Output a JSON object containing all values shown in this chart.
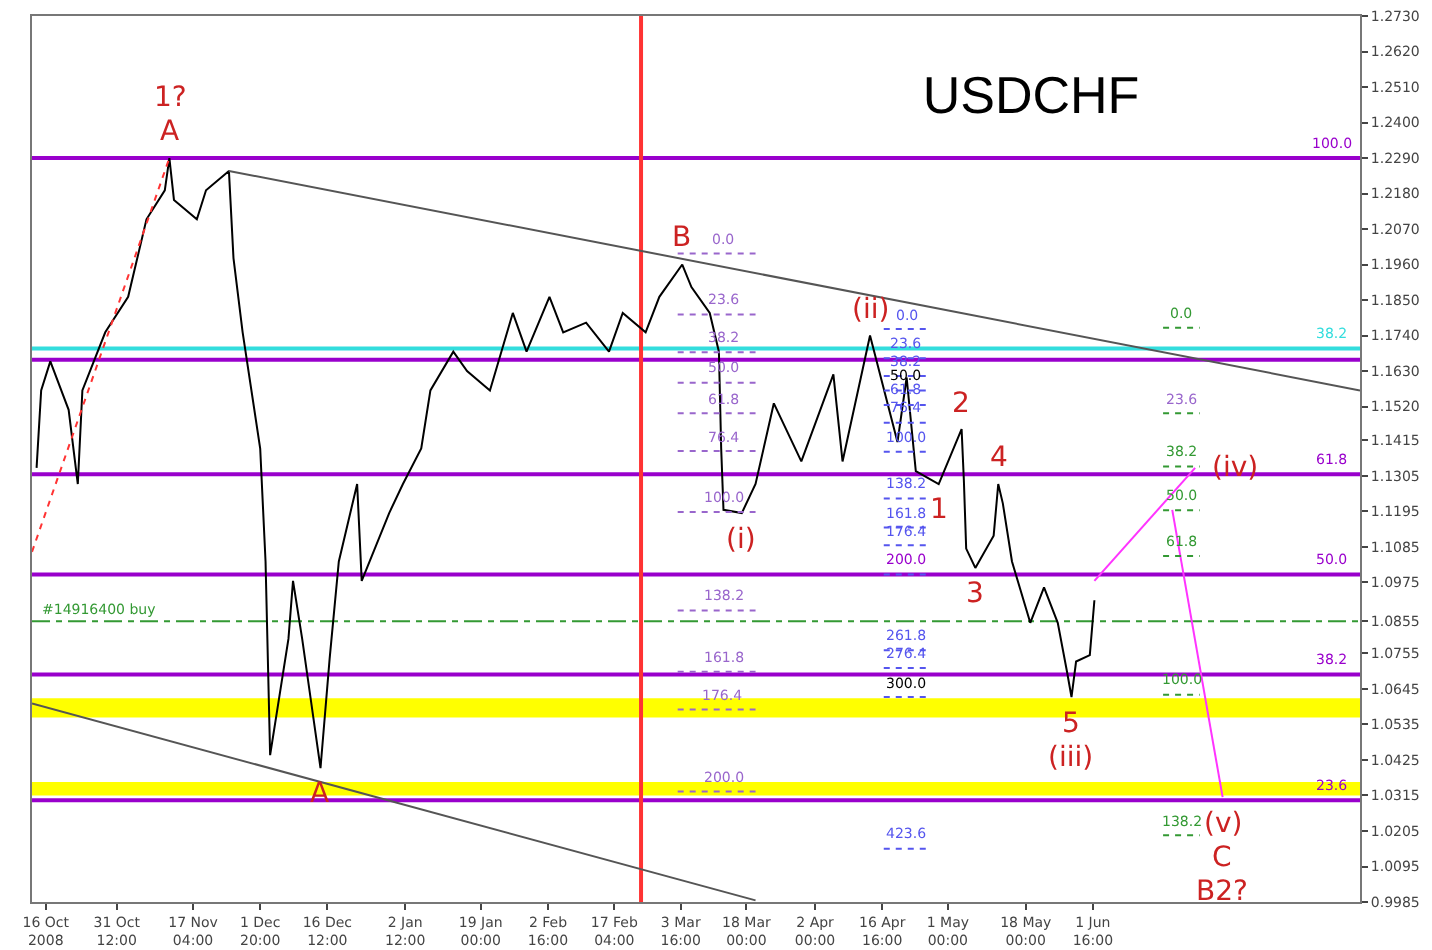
{
  "chart_data": {
    "type": "line",
    "title": "USDCHF",
    "xlim": [
      "2008-10-13",
      "2009-07-30"
    ],
    "ylim": [
      0.9985,
      1.273
    ],
    "xticks": [
      {
        "value": "2008-10-16",
        "label": "16 Oct 2008"
      },
      {
        "value": "2008-10-31T12:00",
        "label": "31 Oct 12:00"
      },
      {
        "value": "2008-11-17T04:00",
        "label": "17 Nov 04:00"
      },
      {
        "value": "2008-12-01T20:00",
        "label": "1 Dec 20:00"
      },
      {
        "value": "2008-12-16T12:00",
        "label": "16 Dec 12:00"
      },
      {
        "value": "2009-01-02T12:00",
        "label": "2 Jan 12:00"
      },
      {
        "value": "2009-01-19T00:00",
        "label": "19 Jan 00:00"
      },
      {
        "value": "2009-02-02T16:00",
        "label": "2 Feb 16:00"
      },
      {
        "value": "2009-02-17T04:00",
        "label": "17 Feb 04:00"
      },
      {
        "value": "2009-03-03T16:00",
        "label": "3 Mar 16:00"
      },
      {
        "value": "2009-03-18T00:00",
        "label": "18 Mar 00:00"
      },
      {
        "value": "2009-04-02T00:00",
        "label": "2 Apr 00:00"
      },
      {
        "value": "2009-04-16T16:00",
        "label": "16 Apr 16:00"
      },
      {
        "value": "2009-05-01T00:00",
        "label": "1 May 00:00"
      },
      {
        "value": "2009-05-18T00:00",
        "label": "18 May 00:00"
      },
      {
        "value": "2009-06-01T16:00",
        "label": "1 Jun 16:00"
      }
    ],
    "yticks": [
      {
        "value": 1.273,
        "label": "1.2730"
      },
      {
        "value": 1.262,
        "label": "1.2620"
      },
      {
        "value": 1.251,
        "label": "1.2510"
      },
      {
        "value": 1.24,
        "label": "1.2400"
      },
      {
        "value": 1.229,
        "label": "1.2290"
      },
      {
        "value": 1.218,
        "label": "1.2180"
      },
      {
        "value": 1.207,
        "label": "1.2070"
      },
      {
        "value": 1.196,
        "label": "1.1960"
      },
      {
        "value": 1.185,
        "label": "1.1850"
      },
      {
        "value": 1.174,
        "label": "1.1740"
      },
      {
        "value": 1.163,
        "label": "1.1630"
      },
      {
        "value": 1.152,
        "label": "1.1520"
      },
      1.1415,
      1.1305,
      1.1195,
      1.1085,
      1.0975,
      1.0855,
      1.0755,
      1.0645,
      1.0535,
      1.0425,
      1.0315,
      1.0205,
      1.0095,
      0.9985
    ],
    "grid": false,
    "series": [
      {
        "color": "#000000",
        "x": [
          "2008-10-14",
          "2008-10-15",
          "2008-10-17",
          "2008-10-21",
          "2008-10-23",
          "2008-10-24",
          "2008-10-29",
          "2008-11-03",
          "2008-11-05",
          "2008-11-07",
          "2008-11-11",
          "2008-11-12",
          "2008-11-13",
          "2008-11-18",
          "2008-11-20",
          "2008-11-25",
          "2008-11-26",
          "2008-11-28",
          "2008-12-01T20:00",
          "2008-12-03",
          "2008-12-04",
          "2008-12-08",
          "2008-12-09",
          "2008-12-11",
          "2008-12-15",
          "2008-12-17",
          "2008-12-19",
          "2008-12-23",
          "2008-12-24",
          "2008-12-30",
          "2009-01-02",
          "2009-01-06",
          "2009-01-08",
          "2009-01-13",
          "2009-01-16",
          "2009-01-21",
          "2009-01-26",
          "2009-01-29",
          "2009-02-03",
          "2009-02-06",
          "2009-02-11",
          "2009-02-16",
          "2009-02-19",
          "2009-02-24",
          "2009-02-27",
          "2009-03-04",
          "2009-03-06",
          "2009-03-10",
          "2009-03-12",
          "2009-03-12T12:00",
          "2009-03-13",
          "2009-03-17",
          "2009-03-20",
          "2009-03-24",
          "2009-03-30",
          "2009-04-06",
          "2009-04-08",
          "2009-04-14",
          "2009-04-20",
          "2009-04-22",
          "2009-04-24",
          "2009-04-29",
          "2009-05-04",
          "2009-05-04T12:00",
          "2009-05-05",
          "2009-05-07",
          "2009-05-11",
          "2009-05-12",
          "2009-05-13",
          "2009-05-15",
          "2009-05-19",
          "2009-05-22",
          "2009-05-25",
          "2009-05-27",
          "2009-05-28",
          "2009-05-29",
          "2009-06-01",
          "2009-06-02"
        ],
        "values": [
          1.133,
          1.157,
          1.166,
          1.151,
          1.128,
          1.157,
          1.175,
          1.186,
          1.198,
          1.21,
          1.219,
          1.229,
          1.216,
          1.21,
          1.219,
          1.225,
          1.198,
          1.175,
          1.139,
          1.104,
          1.044,
          1.08,
          1.098,
          1.08,
          1.04,
          1.074,
          1.104,
          1.128,
          1.098,
          1.119,
          1.128,
          1.139,
          1.157,
          1.169,
          1.163,
          1.157,
          1.181,
          1.169,
          1.186,
          1.175,
          1.178,
          1.169,
          1.181,
          1.175,
          1.186,
          1.196,
          1.189,
          1.181,
          1.169,
          1.139,
          1.12,
          1.119,
          1.128,
          1.153,
          1.135,
          1.162,
          1.135,
          1.174,
          1.141,
          1.161,
          1.132,
          1.128,
          1.145,
          1.129,
          1.108,
          1.102,
          1.112,
          1.128,
          1.122,
          1.104,
          1.085,
          1.096,
          1.085,
          1.07,
          1.062,
          1.073,
          1.075,
          1.092
        ]
      },
      {
        "color": "#555555",
        "x": [
          "2008-11-25",
          "2009-07-30"
        ],
        "values": [
          1.225,
          1.157
        ]
      },
      {
        "color": "#555555",
        "x": [
          "2008-10-13",
          "2009-03-20"
        ],
        "values": [
          1.06,
          0.999
        ]
      },
      {
        "color": "#ff3333",
        "line_style": "dotted",
        "x": [
          "2008-10-13",
          "2008-11-12"
        ],
        "values": [
          1.107,
          1.229
        ]
      },
      {
        "color": "#ff33ff",
        "x": [
          "2009-06-02",
          "2009-06-24"
        ],
        "values": [
          1.098,
          1.133
        ]
      },
      {
        "color": "#ff33ff",
        "x": [
          "2009-06-19",
          "2009-06-30"
        ],
        "values": [
          1.12,
          1.031
        ]
      },
      {
        "color": "#9966cc",
        "line_style": "dotted",
        "x": [
          "2009-03-03",
          "2009-03-20"
        ],
        "values": [
          1.1994,
          1.1994
        ]
      },
      {
        "color": "#9966cc",
        "line_style": "dotted",
        "x": [
          "2009-03-03",
          "2009-03-20"
        ],
        "values": [
          1.1805,
          1.1805
        ]
      },
      {
        "color": "#9966cc",
        "line_style": "dotted",
        "x": [
          "2009-03-03",
          "2009-03-20"
        ],
        "values": [
          1.1688,
          1.1688
        ]
      },
      {
        "color": "#9966cc",
        "line_style": "dotted",
        "x": [
          "2009-03-03",
          "2009-03-20"
        ],
        "values": [
          1.1594,
          1.1594
        ]
      },
      {
        "color": "#9966cc",
        "line_style": "dotted",
        "x": [
          "2009-03-03",
          "2009-03-20"
        ],
        "values": [
          1.1499,
          1.1499
        ]
      },
      {
        "color": "#9966cc",
        "line_style": "dotted",
        "x": [
          "2009-03-03",
          "2009-03-20"
        ],
        "values": [
          1.1382,
          1.1382
        ]
      },
      {
        "color": "#9966cc",
        "line_style": "dotted",
        "x": [
          "2009-03-03",
          "2009-03-20"
        ],
        "values": [
          1.1193,
          1.1193
        ]
      },
      {
        "color": "#9966cc",
        "line_style": "dotted",
        "x": [
          "2009-03-03",
          "2009-03-20"
        ],
        "values": [
          1.0888,
          1.0888
        ]
      },
      {
        "color": "#9966cc",
        "line_style": "dotted",
        "x": [
          "2009-03-03",
          "2009-03-20"
        ],
        "values": [
          1.0698,
          1.0698
        ]
      },
      {
        "color": "#9966cc",
        "line_style": "dotted",
        "x": [
          "2009-03-03",
          "2009-03-20"
        ],
        "values": [
          1.0581,
          1.0581
        ]
      },
      {
        "color": "#9966cc",
        "line_style": "dotted",
        "x": [
          "2009-03-03",
          "2009-03-20"
        ],
        "values": [
          1.0327,
          1.0327
        ]
      },
      {
        "color": "#5555ee",
        "line_style": "dotted",
        "x": [
          "2009-04-17",
          "2009-04-27"
        ],
        "values": [
          1.176,
          1.176
        ]
      },
      {
        "color": "#5555ee",
        "line_style": "dotted",
        "x": [
          "2009-04-17",
          "2009-04-27"
        ],
        "values": [
          1.167,
          1.167
        ]
      },
      {
        "color": "#5555ee",
        "line_style": "dotted",
        "x": [
          "2009-04-17",
          "2009-04-27"
        ],
        "values": [
          1.1615,
          1.1615
        ]
      },
      {
        "color": "#5555ee",
        "line_style": "dotted",
        "x": [
          "2009-04-17",
          "2009-04-27"
        ],
        "values": [
          1.157,
          1.157
        ]
      },
      {
        "color": "#5555ee",
        "line_style": "dotted",
        "x": [
          "2009-04-17",
          "2009-04-27"
        ],
        "values": [
          1.1525,
          1.1525
        ]
      },
      {
        "color": "#5555ee",
        "line_style": "dotted",
        "x": [
          "2009-04-17",
          "2009-04-27"
        ],
        "values": [
          1.147,
          1.147
        ]
      },
      {
        "color": "#5555ee",
        "line_style": "dotted",
        "x": [
          "2009-04-17",
          "2009-04-27"
        ],
        "values": [
          1.138,
          1.138
        ]
      },
      {
        "color": "#5555ee",
        "line_style": "dotted",
        "x": [
          "2009-04-17",
          "2009-04-27"
        ],
        "values": [
          1.1235,
          1.1235
        ]
      },
      {
        "color": "#5555ee",
        "line_style": "dotted",
        "x": [
          "2009-04-17",
          "2009-04-27"
        ],
        "values": [
          1.1145,
          1.1145
        ]
      },
      {
        "color": "#5555ee",
        "line_style": "dotted",
        "x": [
          "2009-04-17",
          "2009-04-27"
        ],
        "values": [
          1.109,
          1.109
        ]
      },
      {
        "color": "#5555ee",
        "line_style": "dotted",
        "x": [
          "2009-04-17",
          "2009-04-27"
        ],
        "values": [
          1.1,
          1.1
        ]
      },
      {
        "color": "#5555ee",
        "line_style": "dotted",
        "x": [
          "2009-04-17",
          "2009-04-27"
        ],
        "values": [
          1.0765,
          1.0765
        ]
      },
      {
        "color": "#5555ee",
        "line_style": "dotted",
        "x": [
          "2009-04-17",
          "2009-04-27"
        ],
        "values": [
          1.071,
          1.071
        ]
      },
      {
        "color": "#5555ee",
        "line_style": "dotted",
        "x": [
          "2009-04-17",
          "2009-04-27"
        ],
        "values": [
          1.062,
          1.062
        ]
      },
      {
        "color": "#5555ee",
        "line_style": "dotted",
        "x": [
          "2009-04-17",
          "2009-04-27"
        ],
        "values": [
          1.015,
          1.015
        ]
      },
      {
        "color": "#339933",
        "line_style": "dotted",
        "x": [
          "2009-06-17",
          "2009-06-25"
        ],
        "values": [
          1.1764,
          1.1764
        ]
      },
      {
        "color": "#339933",
        "line_style": "dotted",
        "x": [
          "2009-06-17",
          "2009-06-25"
        ],
        "values": [
          1.1499,
          1.1499
        ]
      },
      {
        "color": "#339933",
        "line_style": "dotted",
        "x": [
          "2009-06-17",
          "2009-06-25"
        ],
        "values": [
          1.1334,
          1.1334
        ]
      },
      {
        "color": "#339933",
        "line_style": "dotted",
        "x": [
          "2009-06-17",
          "2009-06-25"
        ],
        "values": [
          1.1199,
          1.1199
        ]
      },
      {
        "color": "#339933",
        "line_style": "dotted",
        "x": [
          "2009-06-17",
          "2009-06-25"
        ],
        "values": [
          1.1057,
          1.1057
        ]
      },
      {
        "color": "#339933",
        "line_style": "dotted",
        "x": [
          "2009-06-17",
          "2009-06-25"
        ],
        "values": [
          1.0627,
          1.0627
        ]
      },
      {
        "color": "#339933",
        "line_style": "dotted",
        "x": [
          "2009-06-17",
          "2009-06-25"
        ],
        "values": [
          1.0192,
          1.0192
        ]
      }
    ],
    "ref_lines": [
      {
        "axis": "y",
        "value": 1.229,
        "label": null,
        "color": "#9900cc"
      },
      {
        "axis": "y",
        "value": 1.17,
        "label": null,
        "color": "#33dddd"
      },
      {
        "axis": "y",
        "value": 1.1665,
        "label": null,
        "color": "#9900cc"
      },
      {
        "axis": "y",
        "value": 1.131,
        "label": null,
        "color": "#9900cc"
      },
      {
        "axis": "y",
        "value": 1.1,
        "label": null,
        "color": "#9900cc"
      },
      {
        "axis": "y",
        "value": 1.0855,
        "label": "#14916400 buy",
        "color": "#339933",
        "line_style": "dashdot"
      },
      {
        "axis": "y",
        "value": 1.069,
        "label": null,
        "color": "#9900cc"
      },
      {
        "axis": "y",
        "value": 1.03,
        "label": null,
        "color": "#9900cc"
      },
      {
        "axis": "x",
        "value": "2009-02-23",
        "label": null,
        "color": "#ff3333"
      }
    ],
    "bands": [
      {
        "axis": "y",
        "from": 1.0557,
        "to": 1.0616,
        "label": null,
        "color": "#ffff00"
      },
      {
        "axis": "y",
        "from": 1.0315,
        "to": 1.0357,
        "label": null,
        "color": "#ffff00"
      }
    ],
    "annotations": [
      {
        "text": "1?",
        "x": "2008-11-12",
        "y": 1.229
      },
      {
        "text": "A",
        "x": "2008-11-12",
        "y": 1.229
      },
      {
        "text": "A",
        "x": "2008-12-15",
        "y": 1.04
      },
      {
        "text": "B",
        "x": "2009-03-04",
        "y": 1.196
      },
      {
        "text": "(i)",
        "x": "2009-03-17",
        "y": 1.119
      },
      {
        "text": "(ii)",
        "x": "2009-04-14",
        "y": 1.174
      },
      {
        "text": "1",
        "x": "2009-04-29",
        "y": 1.128
      },
      {
        "text": "2",
        "x": "2009-05-04",
        "y": 1.145
      },
      {
        "text": "3",
        "x": "2009-05-07",
        "y": 1.102
      },
      {
        "text": "4",
        "x": "2009-05-12",
        "y": 1.128
      },
      {
        "text": "5",
        "x": "2009-05-28",
        "y": 1.062
      },
      {
        "text": "(iii)",
        "x": "2009-05-28",
        "y": 1.062
      },
      {
        "text": "(iv)",
        "x": "2009-06-24",
        "y": 1.133
      },
      {
        "text": "(v)",
        "x": "2009-06-30",
        "y": 1.031
      },
      {
        "text": "C",
        "x": "2009-06-30",
        "y": 1.031
      },
      {
        "text": "B2?",
        "x": "2009-06-30",
        "y": 1.031
      },
      {
        "text": "100.0",
        "x": "2009-07-24",
        "y": 1.229
      },
      {
        "text": "38.2",
        "x": "2009-07-24",
        "y": 1.17
      },
      {
        "text": "61.8",
        "x": "2009-07-24",
        "y": 1.131
      },
      {
        "text": "50.0",
        "x": "2009-07-24",
        "y": 1.1
      },
      {
        "text": "38.2",
        "x": "2009-07-24",
        "y": 1.069
      },
      {
        "text": "23.6",
        "x": "2009-07-24",
        "y": 1.03
      },
      {
        "text": "0.0",
        "x": "2009-03-13",
        "y": 1.1994
      },
      {
        "text": "23.6",
        "x": "2009-03-13",
        "y": 1.1805
      },
      {
        "text": "38.2",
        "x": "2009-03-13",
        "y": 1.1688
      },
      {
        "text": "50.0",
        "x": "2009-03-13",
        "y": 1.1594
      },
      {
        "text": "61.8",
        "x": "2009-03-13",
        "y": 1.1499
      },
      {
        "text": "76.4",
        "x": "2009-03-13",
        "y": 1.1382
      },
      {
        "text": "100.0",
        "x": "2009-03-13",
        "y": 1.1193
      },
      {
        "text": "138.2",
        "x": "2009-03-13",
        "y": 1.0888
      },
      {
        "text": "161.8",
        "x": "2009-03-13",
        "y": 1.0698
      },
      {
        "text": "176.4",
        "x": "2009-03-13",
        "y": 1.0581
      },
      {
        "text": "200.0",
        "x": "2009-03-13",
        "y": 1.0327
      },
      {
        "text": "0.0",
        "x": "2009-04-22",
        "y": 1.176
      },
      {
        "text": "23.6",
        "x": "2009-04-22",
        "y": 1.167
      },
      {
        "text": "38.2",
        "x": "2009-04-22",
        "y": 1.1615
      },
      {
        "text": "50.0",
        "x": "2009-04-22",
        "y": 1.157
      },
      {
        "text": "61.8",
        "x": "2009-04-22",
        "y": 1.1525
      },
      {
        "text": "76.4",
        "x": "2009-04-22",
        "y": 1.147
      },
      {
        "text": "100.0",
        "x": "2009-04-22",
        "y": 1.138
      },
      {
        "text": "138.2",
        "x": "2009-04-22",
        "y": 1.1235
      },
      {
        "text": "161.8",
        "x": "2009-04-22",
        "y": 1.1145
      },
      {
        "text": "176.4",
        "x": "2009-04-22",
        "y": 1.109
      },
      {
        "text": "200.0",
        "x": "2009-04-22",
        "y": 1.1
      },
      {
        "text": "261.8",
        "x": "2009-04-22",
        "y": 1.0765
      },
      {
        "text": "276.4",
        "x": "2009-04-22",
        "y": 1.071
      },
      {
        "text": "300.0",
        "x": "2009-04-22",
        "y": 1.062
      },
      {
        "text": "423.6",
        "x": "2009-04-22",
        "y": 1.015
      },
      {
        "text": "0.0",
        "x": "2009-06-21",
        "y": 1.1764
      },
      {
        "text": "23.6",
        "x": "2009-06-21",
        "y": 1.1499
      },
      {
        "text": "38.2",
        "x": "2009-06-21",
        "y": 1.1334
      },
      {
        "text": "50.0",
        "x": "2009-06-21",
        "y": 1.1199
      },
      {
        "text": "61.8",
        "x": "2009-06-21",
        "y": 1.1057
      },
      {
        "text": "100.0",
        "x": "2009-06-21",
        "y": 1.0627
      },
      {
        "text": "138.2",
        "x": "2009-06-21",
        "y": 1.0192
      }
    ]
  }
}
